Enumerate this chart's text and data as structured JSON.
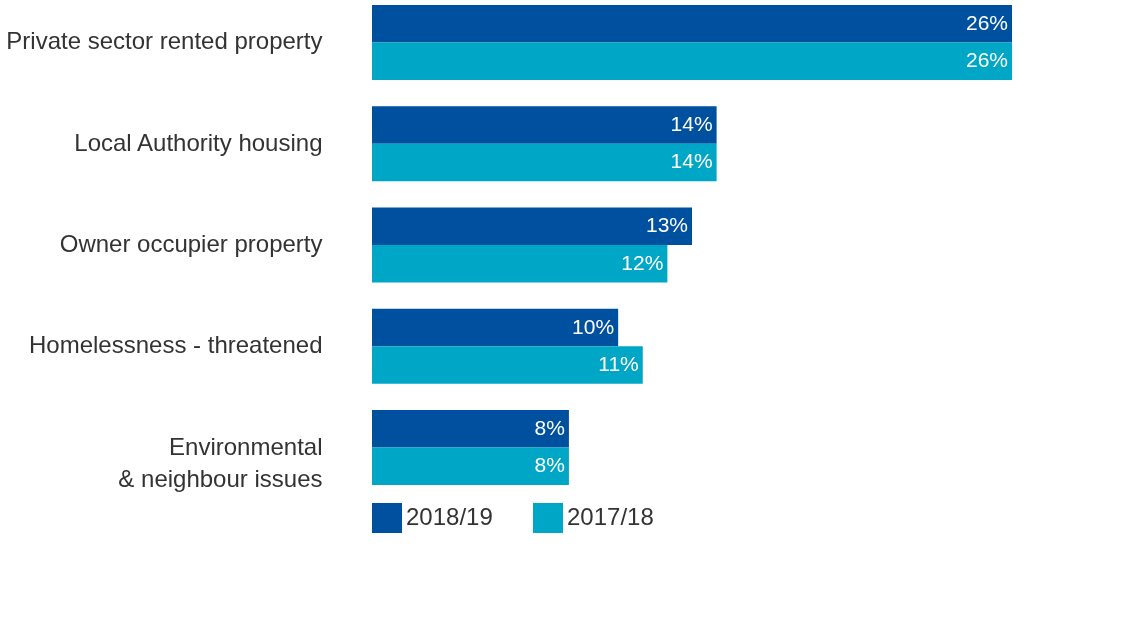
{
  "chart_data": {
    "type": "bar",
    "orientation": "horizontal",
    "legend": "bottom",
    "categories": [
      "Private sector rented property",
      "Local Authority housing",
      "Owner occupier property",
      "Homelessness - threatened",
      "Environmental \n& neighbour issues"
    ],
    "series": [
      {
        "name": "2018/19",
        "color": "#0050a0",
        "values": [
          26,
          14,
          13,
          10,
          8
        ],
        "value_labels": [
          "26%",
          "14%",
          "13%",
          "10%",
          "8%"
        ]
      },
      {
        "name": "2017/18",
        "color": "#00a6c6",
        "values": [
          26,
          14,
          12,
          11,
          8
        ],
        "value_labels": [
          "26%",
          "14%",
          "12%",
          "11%",
          "8%"
        ]
      }
    ]
  }
}
